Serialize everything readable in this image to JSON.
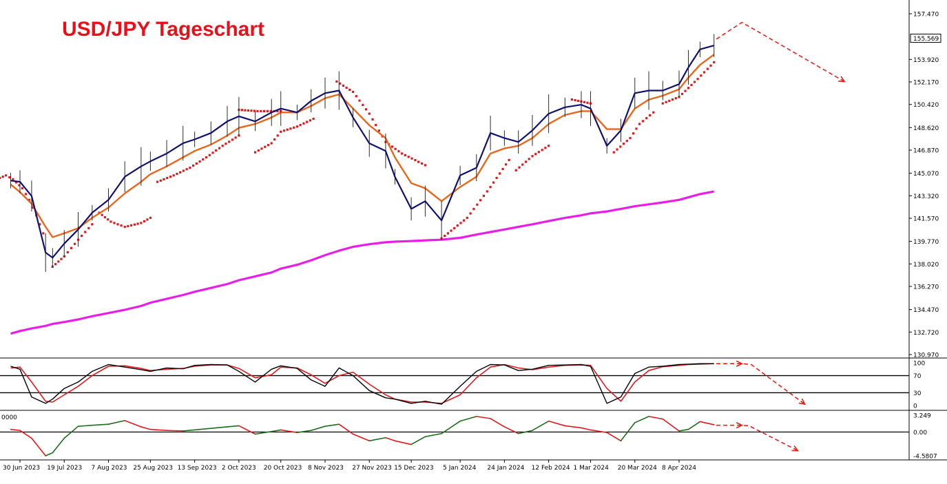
{
  "chart_data": {
    "type": "line",
    "title": "USD/JPY Tageschart",
    "colors": {
      "title": "#e8101a",
      "price": "#101070",
      "ema": "#e8661a",
      "sma200": "#e81ee8",
      "psar": "#e0181c",
      "stoch_main": "#000000",
      "stoch_signal": "#e0181c",
      "osc_up": "#1a6e1a",
      "osc_down": "#e0181c",
      "forecast": "#e8201a"
    },
    "x_axis_labels": [
      "30 Jun 2023",
      "19 Jul 2023",
      "7 Aug 2023",
      "25 Aug 2023",
      "13 Sep 2023",
      "2 Oct 2023",
      "20 Oct 2023",
      "8 Nov 2023",
      "27 Nov 2023",
      "15 Dec 2023",
      "5 Jan 2024",
      "24 Jan 2024",
      "12 Feb 2024",
      "1 Mar 2024",
      "20 Mar 2024",
      "8 Apr 2024"
    ],
    "price_axis": {
      "ticks": [
        "157.470",
        "155.569",
        "153.920",
        "152.170",
        "150.420",
        "148.620",
        "146.870",
        "145.070",
        "143.320",
        "141.570",
        "139.770",
        "138.020",
        "136.270",
        "134.470",
        "132.720",
        "130.970"
      ],
      "current_price": "155.569",
      "range": [
        130.97,
        157.47
      ]
    },
    "stoch_axis": {
      "ticks": [
        "100",
        "70",
        "30",
        "0"
      ],
      "levels": [
        70,
        30
      ]
    },
    "osc_axis": {
      "ticks": [
        "3.249",
        "0.00",
        "-4.5807"
      ],
      "corner_label": "0000"
    },
    "dates": [
      "2023-06-26",
      "2023-06-30",
      "2023-07-05",
      "2023-07-11",
      "2023-07-14",
      "2023-07-19",
      "2023-07-25",
      "2023-07-31",
      "2023-08-07",
      "2023-08-14",
      "2023-08-21",
      "2023-08-25",
      "2023-09-01",
      "2023-09-08",
      "2023-09-13",
      "2023-09-20",
      "2023-09-27",
      "2023-10-02",
      "2023-10-09",
      "2023-10-16",
      "2023-10-20",
      "2023-10-27",
      "2023-11-02",
      "2023-11-08",
      "2023-11-14",
      "2023-11-20",
      "2023-11-27",
      "2023-12-04",
      "2023-12-08",
      "2023-12-15",
      "2023-12-21",
      "2023-12-28",
      "2024-01-05",
      "2024-01-12",
      "2024-01-18",
      "2024-01-24",
      "2024-01-30",
      "2024-02-05",
      "2024-02-12",
      "2024-02-19",
      "2024-02-26",
      "2024-03-01",
      "2024-03-08",
      "2024-03-14",
      "2024-03-20",
      "2024-03-26",
      "2024-04-01",
      "2024-04-08",
      "2024-04-12",
      "2024-04-17",
      "2024-04-23"
    ],
    "series": [
      {
        "name": "USD/JPY",
        "style": "price",
        "values": [
          144.5,
          144.4,
          143.3,
          138.9,
          138.5,
          139.6,
          140.7,
          142.0,
          143.0,
          144.8,
          145.6,
          146.0,
          146.6,
          147.4,
          147.7,
          148.2,
          149.1,
          149.5,
          149.1,
          149.8,
          150.1,
          149.8,
          150.7,
          151.3,
          151.5,
          149.4,
          147.4,
          146.8,
          144.8,
          142.3,
          142.9,
          141.4,
          144.9,
          145.5,
          148.2,
          147.8,
          147.5,
          148.4,
          149.7,
          150.2,
          150.4,
          150.1,
          147.2,
          148.4,
          151.3,
          151.5,
          151.5,
          152.0,
          153.3,
          154.7,
          155.0
        ]
      },
      {
        "name": "EMA",
        "style": "ema",
        "values": [
          144.2,
          143.6,
          142.7,
          140.9,
          140.1,
          140.4,
          140.8,
          141.6,
          142.4,
          143.5,
          144.4,
          145.0,
          145.6,
          146.3,
          146.8,
          147.3,
          148.0,
          148.6,
          148.9,
          149.4,
          149.8,
          149.8,
          150.3,
          150.9,
          151.2,
          150.1,
          148.8,
          147.8,
          146.3,
          144.3,
          143.9,
          142.9,
          144.0,
          144.8,
          146.6,
          147.0,
          147.2,
          147.8,
          148.9,
          149.6,
          149.9,
          149.9,
          148.5,
          148.5,
          150.1,
          150.8,
          151.1,
          151.6,
          152.5,
          153.5,
          154.3
        ]
      },
      {
        "name": "SMA 200",
        "style": "sma",
        "values": [
          132.6,
          132.8,
          133.0,
          133.2,
          133.35,
          133.5,
          133.7,
          133.95,
          134.2,
          134.45,
          134.75,
          135.0,
          135.3,
          135.6,
          135.85,
          136.15,
          136.45,
          136.75,
          137.05,
          137.35,
          137.65,
          137.95,
          138.3,
          138.7,
          139.05,
          139.35,
          139.55,
          139.7,
          139.75,
          139.8,
          139.85,
          139.9,
          140.05,
          140.3,
          140.5,
          140.7,
          140.9,
          141.1,
          141.35,
          141.6,
          141.8,
          141.95,
          142.1,
          142.3,
          142.5,
          142.65,
          142.8,
          143.0,
          143.2,
          143.45,
          143.65
        ]
      }
    ],
    "parabolic_sar": [
      {
        "dates": [
          "2023-06-20",
          "2023-06-24",
          "2023-06-27",
          "2023-07-01",
          "2023-07-04",
          "2023-07-07",
          "2023-07-10"
        ],
        "values": [
          144.6,
          144.9,
          144.6,
          143.9,
          143.0,
          141.8,
          140.4
        ]
      },
      {
        "dates": [
          "2023-07-14",
          "2023-07-19",
          "2023-07-25",
          "2023-07-31"
        ],
        "values": [
          137.8,
          138.6,
          139.9,
          141.1
        ]
      },
      {
        "dates": [
          "2023-08-03",
          "2023-08-08",
          "2023-08-14",
          "2023-08-21",
          "2023-08-25"
        ],
        "values": [
          142.0,
          141.3,
          140.9,
          141.2,
          141.6
        ]
      },
      {
        "dates": [
          "2023-08-28",
          "2023-09-04",
          "2023-09-11",
          "2023-09-18",
          "2023-09-25",
          "2023-10-02"
        ],
        "values": [
          144.4,
          144.9,
          145.5,
          146.3,
          147.2,
          148.0
        ]
      },
      {
        "dates": [
          "2023-10-02",
          "2023-10-10",
          "2023-10-20"
        ],
        "values": [
          150.0,
          149.9,
          149.9
        ]
      },
      {
        "dates": [
          "2023-10-09",
          "2023-10-16",
          "2023-10-20",
          "2023-10-27",
          "2023-11-03"
        ],
        "values": [
          146.7,
          147.4,
          148.3,
          148.7,
          149.3
        ]
      },
      {
        "dates": [
          "2023-11-13",
          "2023-11-20",
          "2023-11-27",
          "2023-12-04",
          "2023-12-11",
          "2023-12-21"
        ],
        "values": [
          152.2,
          151.4,
          149.7,
          147.5,
          146.6,
          145.7
        ]
      },
      {
        "dates": [
          "2023-12-28",
          "2024-01-08",
          "2024-01-18",
          "2024-01-26"
        ],
        "values": [
          140.0,
          141.6,
          144.0,
          146.1
        ]
      },
      {
        "dates": [
          "2024-01-29",
          "2024-02-05",
          "2024-02-12"
        ],
        "values": [
          145.3,
          146.4,
          147.2
        ]
      },
      {
        "dates": [
          "2024-02-22",
          "2024-03-01"
        ],
        "values": [
          150.8,
          150.5
        ]
      },
      {
        "dates": [
          "2024-03-11",
          "2024-03-18",
          "2024-03-22",
          "2024-03-28"
        ],
        "values": [
          146.7,
          147.8,
          148.9,
          149.8
        ]
      },
      {
        "dates": [
          "2024-04-01",
          "2024-04-08",
          "2024-04-16",
          "2024-04-23"
        ],
        "values": [
          150.5,
          151.0,
          152.4,
          153.7
        ]
      }
    ],
    "stochastic": {
      "main": [
        92,
        85,
        20,
        5,
        15,
        40,
        55,
        80,
        96,
        90,
        84,
        80,
        88,
        86,
        94,
        96,
        95,
        80,
        55,
        85,
        93,
        87,
        60,
        45,
        88,
        70,
        35,
        18,
        15,
        5,
        10,
        3,
        45,
        80,
        96,
        95,
        82,
        85,
        94,
        95,
        96,
        92,
        5,
        20,
        75,
        90,
        92,
        96,
        97,
        98,
        98
      ],
      "signal": [
        88,
        90,
        55,
        10,
        8,
        25,
        45,
        70,
        92,
        93,
        87,
        82,
        85,
        87,
        92,
        95,
        95,
        87,
        65,
        72,
        90,
        88,
        72,
        52,
        70,
        78,
        50,
        25,
        15,
        8,
        8,
        5,
        25,
        65,
        90,
        96,
        88,
        84,
        90,
        94,
        95,
        94,
        40,
        10,
        55,
        82,
        91,
        94,
        96,
        97,
        98
      ]
    },
    "oscillator": [
      0.5,
      0.3,
      -1.2,
      -4.58,
      -4.0,
      -1.2,
      1.1,
      1.3,
      1.5,
      2.2,
      1.0,
      0.5,
      0.3,
      0.2,
      0.4,
      0.7,
      1.0,
      1.2,
      -0.4,
      0.1,
      0.4,
      -0.1,
      0.3,
      1.1,
      1.5,
      -0.4,
      -1.7,
      -1.1,
      -1.7,
      -2.4,
      -0.9,
      -0.3,
      2.1,
      3.0,
      2.6,
      1.0,
      -0.3,
      0.3,
      2.1,
      1.2,
      0.8,
      0.4,
      -0.1,
      -1.7,
      1.8,
      3.0,
      2.5,
      0.2,
      0.5,
      2.0,
      1.4
    ],
    "forecast": {
      "main": {
        "dates": [
          "2024-04-24",
          "2024-05-05",
          "2024-06-18"
        ],
        "values": [
          155.5,
          156.8,
          152.2
        ]
      },
      "stochastic": {
        "dates": [
          "2024-04-24",
          "2024-05-05",
          "2024-05-09",
          "2024-06-01"
        ],
        "values": [
          98,
          98,
          96,
          3
        ]
      },
      "oscillator": {
        "dates": [
          "2024-04-24",
          "2024-05-05",
          "2024-05-08",
          "2024-05-29"
        ],
        "values": [
          1.3,
          1.3,
          1.2,
          -3.6
        ]
      }
    }
  }
}
